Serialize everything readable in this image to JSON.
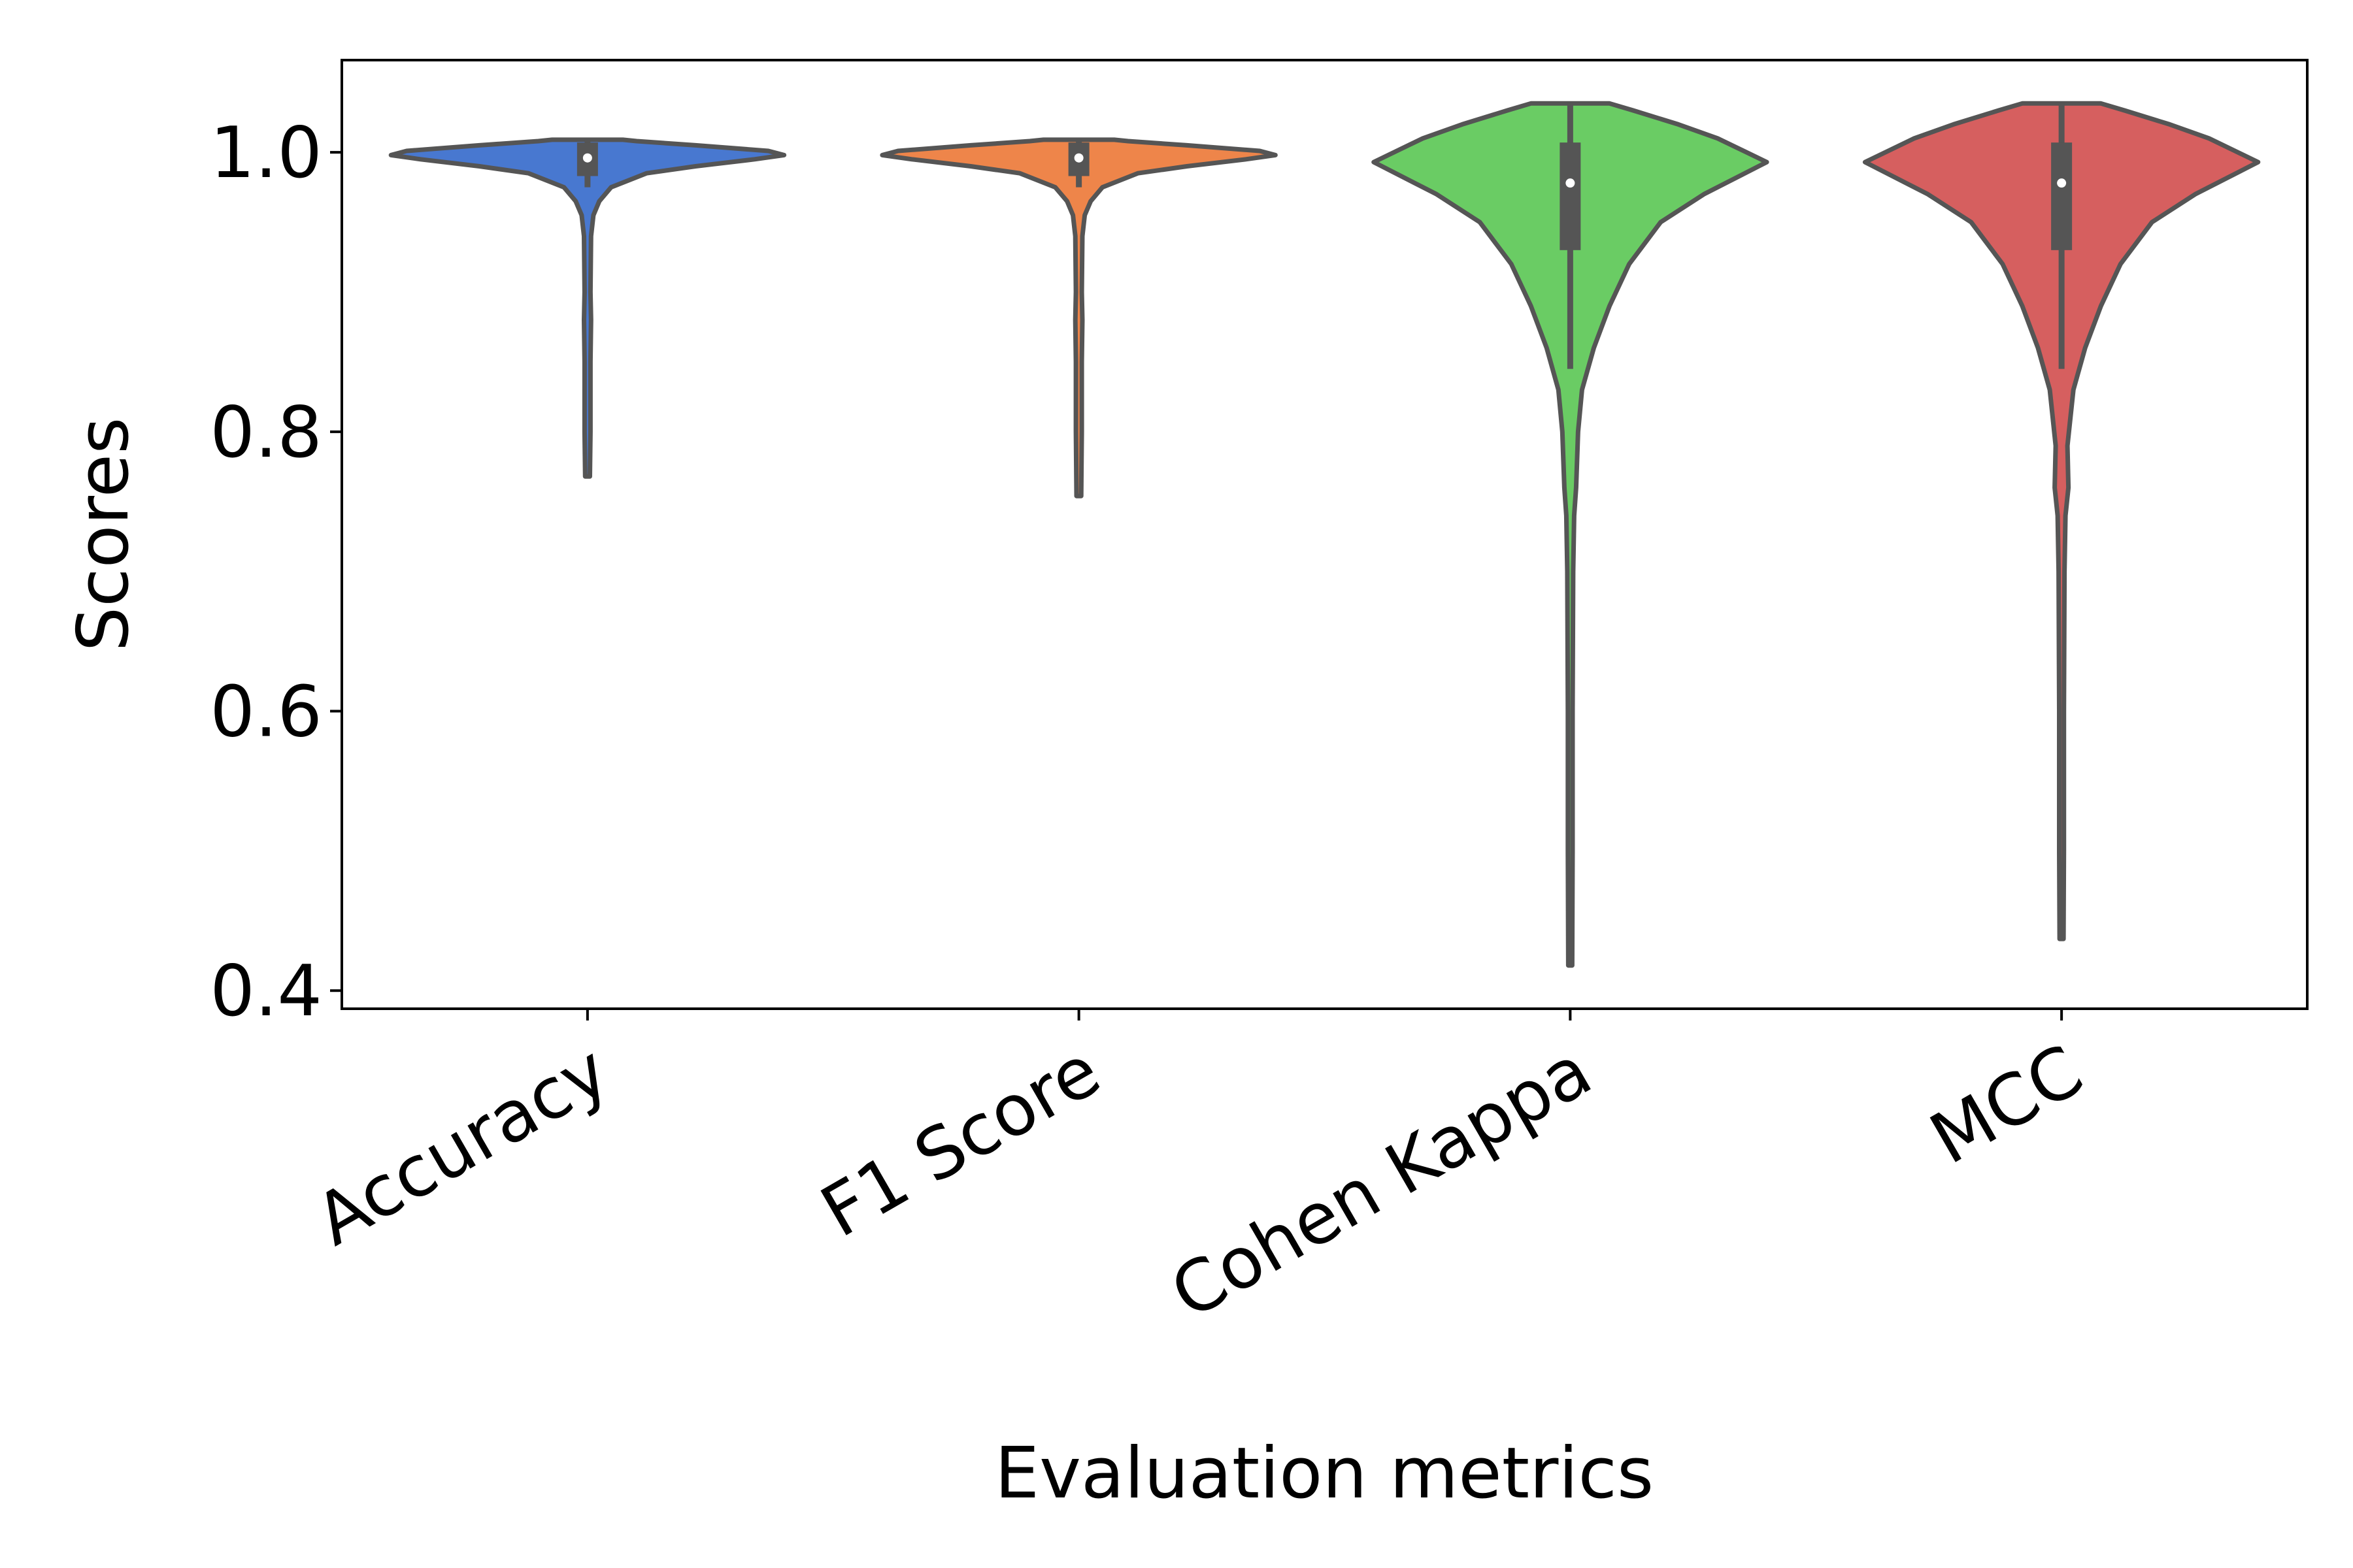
{
  "chart_data": {
    "type": "violin",
    "title": "",
    "xlabel": "Evaluation metrics",
    "ylabel": "Scores",
    "ylim": [
      0.387,
      1.066
    ],
    "yticks": [
      0.4,
      0.6,
      0.8,
      1.0
    ],
    "ytick_labels": [
      "0.4",
      "0.6",
      "0.8",
      "1.0"
    ],
    "grid": false,
    "legend": "none",
    "categories": [
      "Accuracy",
      "F1 Score",
      "Cohen Kappa",
      "MCC"
    ],
    "colors": [
      "#4878d0",
      "#ee854a",
      "#6acc64",
      "#d65f5f"
    ],
    "outline_color": "#555555",
    "series": [
      {
        "name": "Accuracy",
        "min": 0.768,
        "q1": 0.983,
        "median": 0.996,
        "q3": 1.007,
        "max": 1.009,
        "whisker_low": 0.975,
        "whisker_high": 1.009,
        "density": [
          [
            0.768,
            0.012
          ],
          [
            0.8,
            0.015
          ],
          [
            0.85,
            0.015
          ],
          [
            0.88,
            0.018
          ],
          [
            0.9,
            0.015
          ],
          [
            0.94,
            0.018
          ],
          [
            0.955,
            0.03
          ],
          [
            0.965,
            0.06
          ],
          [
            0.975,
            0.12
          ],
          [
            0.985,
            0.3
          ],
          [
            0.99,
            0.55
          ],
          [
            0.995,
            0.85
          ],
          [
            0.998,
            1.0
          ],
          [
            1.001,
            0.92
          ],
          [
            1.005,
            0.55
          ],
          [
            1.008,
            0.25
          ],
          [
            1.009,
            0.18
          ]
        ]
      },
      {
        "name": "F1 Score",
        "min": 0.754,
        "q1": 0.983,
        "median": 0.996,
        "q3": 1.007,
        "max": 1.009,
        "whisker_low": 0.975,
        "whisker_high": 1.009,
        "density": [
          [
            0.754,
            0.012
          ],
          [
            0.8,
            0.015
          ],
          [
            0.85,
            0.015
          ],
          [
            0.88,
            0.018
          ],
          [
            0.9,
            0.015
          ],
          [
            0.94,
            0.018
          ],
          [
            0.955,
            0.03
          ],
          [
            0.965,
            0.06
          ],
          [
            0.975,
            0.12
          ],
          [
            0.985,
            0.3
          ],
          [
            0.99,
            0.55
          ],
          [
            0.995,
            0.85
          ],
          [
            0.998,
            1.0
          ],
          [
            1.001,
            0.92
          ],
          [
            1.005,
            0.55
          ],
          [
            1.008,
            0.25
          ],
          [
            1.009,
            0.18
          ]
        ]
      },
      {
        "name": "Cohen Kappa",
        "min": 0.418,
        "q1": 0.93,
        "median": 0.978,
        "q3": 1.007,
        "max": 1.035,
        "whisker_low": 0.845,
        "whisker_high": 1.035,
        "density": [
          [
            0.418,
            0.01
          ],
          [
            0.5,
            0.012
          ],
          [
            0.6,
            0.012
          ],
          [
            0.7,
            0.015
          ],
          [
            0.74,
            0.02
          ],
          [
            0.76,
            0.03
          ],
          [
            0.8,
            0.04
          ],
          [
            0.83,
            0.06
          ],
          [
            0.86,
            0.12
          ],
          [
            0.89,
            0.2
          ],
          [
            0.92,
            0.3
          ],
          [
            0.95,
            0.46
          ],
          [
            0.97,
            0.68
          ],
          [
            0.993,
            1.0
          ],
          [
            1.01,
            0.75
          ],
          [
            1.02,
            0.55
          ],
          [
            1.03,
            0.32
          ],
          [
            1.035,
            0.2
          ]
        ]
      },
      {
        "name": "MCC",
        "min": 0.437,
        "q1": 0.93,
        "median": 0.978,
        "q3": 1.007,
        "max": 1.035,
        "whisker_low": 0.845,
        "whisker_high": 1.035,
        "density": [
          [
            0.437,
            0.01
          ],
          [
            0.5,
            0.012
          ],
          [
            0.6,
            0.012
          ],
          [
            0.7,
            0.015
          ],
          [
            0.74,
            0.02
          ],
          [
            0.76,
            0.035
          ],
          [
            0.79,
            0.03
          ],
          [
            0.83,
            0.06
          ],
          [
            0.86,
            0.12
          ],
          [
            0.89,
            0.2
          ],
          [
            0.92,
            0.3
          ],
          [
            0.95,
            0.46
          ],
          [
            0.97,
            0.68
          ],
          [
            0.993,
            1.0
          ],
          [
            1.01,
            0.75
          ],
          [
            1.02,
            0.55
          ],
          [
            1.03,
            0.32
          ],
          [
            1.035,
            0.2
          ]
        ]
      }
    ]
  }
}
